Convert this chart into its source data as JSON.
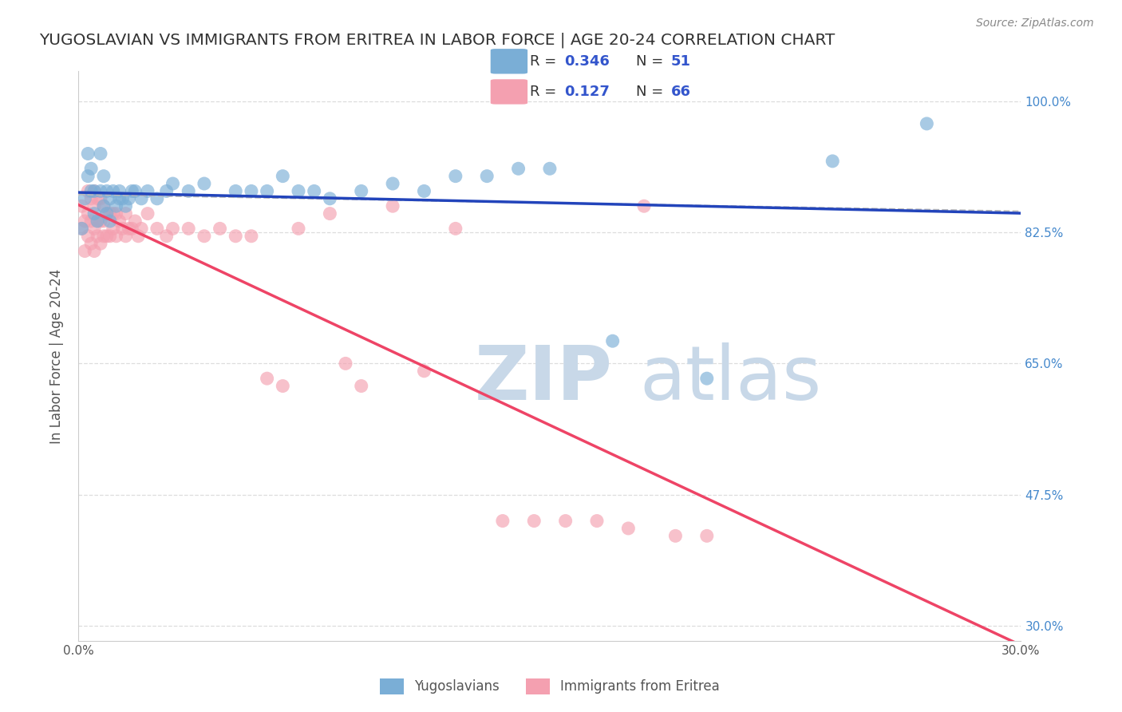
{
  "title": "YUGOSLAVIAN VS IMMIGRANTS FROM ERITREA IN LABOR FORCE | AGE 20-24 CORRELATION CHART",
  "source": "Source: ZipAtlas.com",
  "ylabel": "In Labor Force | Age 20-24",
  "xlim": [
    0.0,
    0.3
  ],
  "ylim": [
    0.28,
    1.04
  ],
  "yticks": [
    0.3,
    0.475,
    0.65,
    0.825,
    1.0
  ],
  "ytick_labels": [
    "30.0%",
    "47.5%",
    "65.0%",
    "82.5%",
    "100.0%"
  ],
  "xticks": [
    0.0,
    0.3
  ],
  "xtick_labels": [
    "0.0%",
    "30.0%"
  ],
  "background_color": "#ffffff",
  "grid_color": "#dddddd",
  "blue_color": "#7aaed6",
  "pink_color": "#f4a0b0",
  "blue_line_color": "#2244bb",
  "pink_line_color": "#ee4466",
  "dashed_line_color": "#bbbbbb",
  "r_blue": 0.346,
  "n_blue": 51,
  "r_pink": 0.127,
  "n_pink": 66,
  "legend_text_color": "#3355cc",
  "title_color": "#333333",
  "watermark_zip": "ZIP",
  "watermark_atlas": "atlas",
  "watermark_color": "#c8d8e8",
  "yaxis_label_color": "#555555",
  "right_ytick_color": "#4488cc",
  "yugoslav_x": [
    0.001,
    0.002,
    0.003,
    0.003,
    0.004,
    0.004,
    0.005,
    0.005,
    0.006,
    0.007,
    0.007,
    0.008,
    0.008,
    0.009,
    0.009,
    0.01,
    0.01,
    0.011,
    0.012,
    0.013,
    0.013,
    0.014,
    0.015,
    0.016,
    0.017,
    0.018,
    0.02,
    0.022,
    0.025,
    0.028,
    0.03,
    0.035,
    0.04,
    0.05,
    0.055,
    0.06,
    0.065,
    0.07,
    0.075,
    0.08,
    0.09,
    0.1,
    0.11,
    0.12,
    0.13,
    0.14,
    0.15,
    0.17,
    0.2,
    0.24,
    0.27
  ],
  "yugoslav_y": [
    0.83,
    0.87,
    0.9,
    0.93,
    0.88,
    0.91,
    0.85,
    0.88,
    0.84,
    0.88,
    0.93,
    0.86,
    0.9,
    0.85,
    0.88,
    0.84,
    0.87,
    0.88,
    0.86,
    0.87,
    0.88,
    0.87,
    0.86,
    0.87,
    0.88,
    0.88,
    0.87,
    0.88,
    0.87,
    0.88,
    0.89,
    0.88,
    0.89,
    0.88,
    0.88,
    0.88,
    0.9,
    0.88,
    0.88,
    0.87,
    0.88,
    0.89,
    0.88,
    0.9,
    0.9,
    0.91,
    0.91,
    0.68,
    0.63,
    0.92,
    0.97
  ],
  "eritrea_x": [
    0.001,
    0.001,
    0.002,
    0.002,
    0.003,
    0.003,
    0.003,
    0.004,
    0.004,
    0.004,
    0.005,
    0.005,
    0.005,
    0.005,
    0.006,
    0.006,
    0.006,
    0.007,
    0.007,
    0.007,
    0.008,
    0.008,
    0.008,
    0.009,
    0.009,
    0.01,
    0.01,
    0.011,
    0.011,
    0.012,
    0.012,
    0.013,
    0.014,
    0.015,
    0.015,
    0.016,
    0.017,
    0.018,
    0.019,
    0.02,
    0.022,
    0.025,
    0.028,
    0.03,
    0.035,
    0.04,
    0.045,
    0.05,
    0.055,
    0.06,
    0.065,
    0.07,
    0.08,
    0.085,
    0.09,
    0.1,
    0.11,
    0.12,
    0.135,
    0.145,
    0.155,
    0.165,
    0.175,
    0.18,
    0.19,
    0.2
  ],
  "eritrea_y": [
    0.83,
    0.86,
    0.8,
    0.84,
    0.82,
    0.85,
    0.88,
    0.81,
    0.84,
    0.87,
    0.8,
    0.83,
    0.86,
    0.88,
    0.82,
    0.84,
    0.87,
    0.81,
    0.84,
    0.87,
    0.82,
    0.84,
    0.86,
    0.82,
    0.85,
    0.82,
    0.85,
    0.83,
    0.85,
    0.82,
    0.85,
    0.84,
    0.83,
    0.82,
    0.85,
    0.83,
    0.83,
    0.84,
    0.82,
    0.83,
    0.85,
    0.83,
    0.82,
    0.83,
    0.83,
    0.82,
    0.83,
    0.82,
    0.82,
    0.63,
    0.62,
    0.83,
    0.85,
    0.65,
    0.62,
    0.86,
    0.64,
    0.83,
    0.44,
    0.44,
    0.44,
    0.44,
    0.43,
    0.86,
    0.42,
    0.42
  ]
}
